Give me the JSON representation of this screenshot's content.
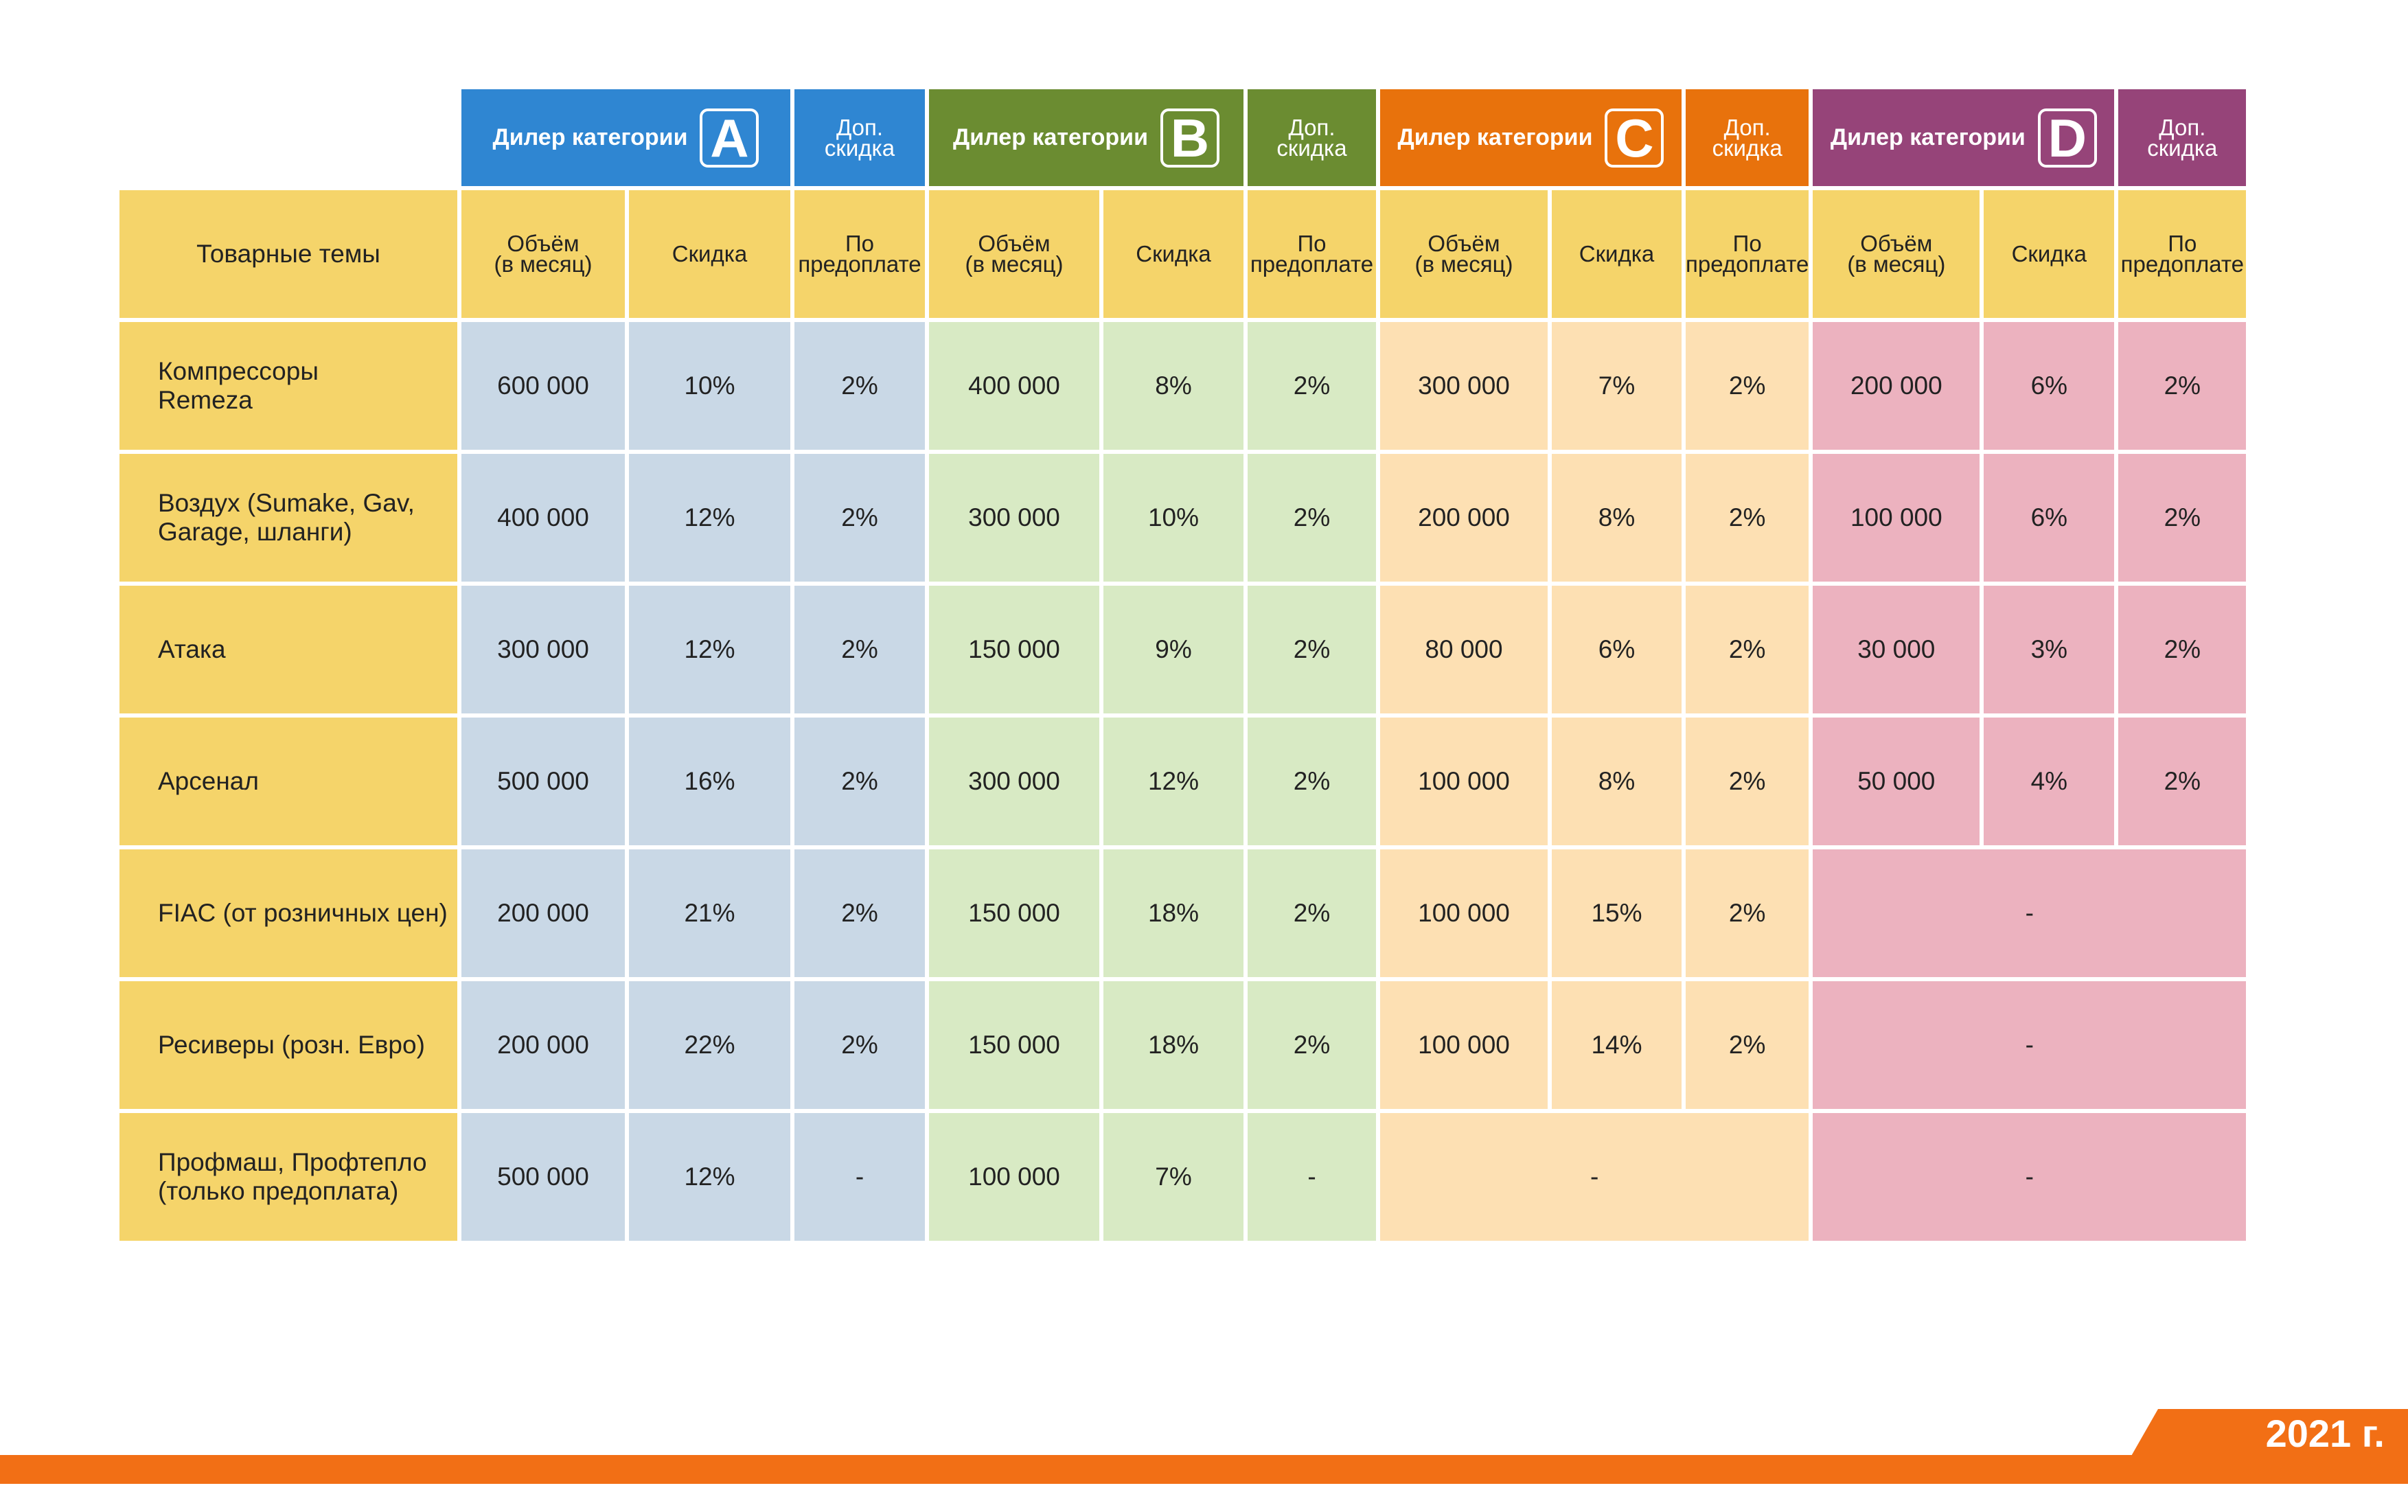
{
  "colors": {
    "cat_a": "#2f86d2",
    "cat_b": "#6b8c31",
    "cat_c": "#e8720c",
    "cat_d": "#964479",
    "header_yellow": "#f5d46a",
    "cell_a": "#c9d8e6",
    "cell_b": "#d8eac4",
    "cell_c": "#fde0b3",
    "cell_d": "#ecb2bf",
    "footer_orange": "#f26f15"
  },
  "categories": [
    {
      "title": "Дилер категории",
      "letter": "A",
      "extra_line1": "Доп.",
      "extra_line2": "скидка"
    },
    {
      "title": "Дилер категории",
      "letter": "B",
      "extra_line1": "Доп.",
      "extra_line2": "скидка"
    },
    {
      "title": "Дилер категории",
      "letter": "C",
      "extra_line1": "Доп.",
      "extra_line2": "скидка"
    },
    {
      "title": "Дилер категории",
      "letter": "D",
      "extra_line1": "Доп.",
      "extra_line2": "скидка"
    }
  ],
  "subheader": {
    "topic": "Товарные темы",
    "volume_line1": "Объём",
    "volume_line2": "(в месяц)",
    "discount": "Скидка",
    "prepay_line1": "По",
    "prepay_line2": "предоплате"
  },
  "rows": [
    {
      "line1": "Компрессоры",
      "line2": "Remeza",
      "a": [
        "600 000",
        "10%",
        "2%"
      ],
      "b": [
        "400 000",
        "8%",
        "2%"
      ],
      "c": [
        "300 000",
        "7%",
        "2%"
      ],
      "d": [
        "200 000",
        "6%",
        "2%"
      ]
    },
    {
      "line1": "Воздух (Sumake, Gav,",
      "line2": "Garage, шланги)",
      "a": [
        "400 000",
        "12%",
        "2%"
      ],
      "b": [
        "300 000",
        "10%",
        "2%"
      ],
      "c": [
        "200 000",
        "8%",
        "2%"
      ],
      "d": [
        "100 000",
        "6%",
        "2%"
      ]
    },
    {
      "line1": "Атака",
      "line2": "",
      "a": [
        "300 000",
        "12%",
        "2%"
      ],
      "b": [
        "150 000",
        "9%",
        "2%"
      ],
      "c": [
        "80 000",
        "6%",
        "2%"
      ],
      "d": [
        "30 000",
        "3%",
        "2%"
      ]
    },
    {
      "line1": "Арсенал",
      "line2": "",
      "a": [
        "500 000",
        "16%",
        "2%"
      ],
      "b": [
        "300 000",
        "12%",
        "2%"
      ],
      "c": [
        "100 000",
        "8%",
        "2%"
      ],
      "d": [
        "50 000",
        "4%",
        "2%"
      ]
    },
    {
      "line1": "FIAC (от розничных цен)",
      "line2": "",
      "a": [
        "200 000",
        "21%",
        "2%"
      ],
      "b": [
        "150 000",
        "18%",
        "2%"
      ],
      "c": [
        "100 000",
        "15%",
        "2%"
      ],
      "d_merged": "-"
    },
    {
      "line1": "Ресиверы (розн. Евро)",
      "line2": "",
      "a": [
        "200 000",
        "22%",
        "2%"
      ],
      "b": [
        "150 000",
        "18%",
        "2%"
      ],
      "c": [
        "100 000",
        "14%",
        "2%"
      ],
      "d_merged": "-"
    },
    {
      "line1": "Профмаш, Профтепло",
      "line2": "(только предоплата)",
      "a": [
        "500 000",
        "12%",
        "-"
      ],
      "b": [
        "100 000",
        "7%",
        "-"
      ],
      "c_merged": "-",
      "d_merged": "-"
    }
  ],
  "footer": {
    "year": "2021 г."
  }
}
